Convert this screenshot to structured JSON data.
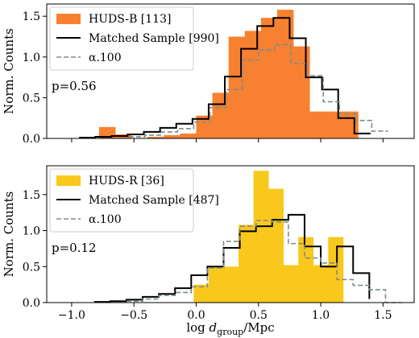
{
  "chart_data": [
    {
      "type": "bar",
      "panel": "top",
      "ylabel": "Norm. Counts",
      "xlabel": "",
      "xlim": [
        -1.2,
        1.75
      ],
      "ylim": [
        0,
        1.65
      ],
      "xticks": [
        -1.0,
        -0.5,
        0.0,
        0.5,
        1.0,
        1.5
      ],
      "xtick_labels": [
        "",
        "",
        "",
        "",
        "",
        ""
      ],
      "yticks": [
        0.0,
        0.5,
        1.0,
        1.5
      ],
      "ytick_labels": [
        "0.0",
        "0.5",
        "1.0",
        "1.5"
      ],
      "annotation": "p=0.56",
      "legend": {
        "placement": "upper-left",
        "entries": [
          {
            "key": "filled",
            "label": "HUDS-B [113]",
            "color": "#f78130"
          },
          {
            "key": "step",
            "label": "Matched Sample [990]",
            "color": "#000000"
          },
          {
            "key": "dashed",
            "label": "α.100",
            "color": "#7f8c8d"
          }
        ]
      },
      "series": [
        {
          "key": "filled",
          "name": "HUDS-B [113]",
          "style": "filled-histogram",
          "color": "#f78130",
          "bin_edges": [
            -0.78,
            -0.65,
            -0.52,
            -0.39,
            -0.26,
            -0.13,
            0.0,
            0.13,
            0.26,
            0.39,
            0.52,
            0.65,
            0.78,
            0.91,
            1.04,
            1.17,
            1.3
          ],
          "values": [
            0.14,
            0.05,
            0.0,
            0.02,
            0.04,
            0.06,
            0.28,
            0.56,
            1.25,
            1.32,
            1.48,
            1.58,
            1.13,
            0.33,
            0.33,
            0.33
          ]
        },
        {
          "key": "step",
          "name": "Matched Sample [990]",
          "style": "step",
          "color": "#000000",
          "bin_edges": [
            -0.94,
            -0.81,
            -0.68,
            -0.55,
            -0.42,
            -0.29,
            -0.16,
            -0.03,
            0.1,
            0.23,
            0.36,
            0.49,
            0.62,
            0.75,
            0.88,
            1.01,
            1.14,
            1.27,
            1.4
          ],
          "values": [
            0.01,
            0.02,
            0.03,
            0.05,
            0.08,
            0.13,
            0.18,
            0.24,
            0.42,
            0.76,
            1.1,
            1.38,
            1.48,
            1.23,
            0.75,
            0.6,
            0.25,
            0.06
          ]
        },
        {
          "key": "dashed",
          "name": "α.100",
          "style": "dashed-step",
          "color": "#7f8c8d",
          "bin_edges": [
            -0.54,
            -0.41,
            -0.28,
            -0.15,
            -0.02,
            0.11,
            0.24,
            0.37,
            0.5,
            0.63,
            0.76,
            0.89,
            1.02,
            1.15,
            1.28,
            1.41,
            1.54
          ],
          "values": [
            0.02,
            0.04,
            0.08,
            0.12,
            0.2,
            0.38,
            0.6,
            0.96,
            1.09,
            1.15,
            0.92,
            0.77,
            0.45,
            0.3,
            0.22,
            0.09
          ]
        }
      ]
    },
    {
      "type": "bar",
      "panel": "bottom",
      "ylabel": "Norm. Counts",
      "xlabel": "log d_group/Mpc",
      "xlabel_parts": {
        "prefix": "log ",
        "var": "d",
        "sub": "group",
        "suffix": "/Mpc"
      },
      "xlim": [
        -1.2,
        1.75
      ],
      "ylim": [
        0,
        1.9
      ],
      "xticks": [
        -1.0,
        -0.5,
        0.0,
        0.5,
        1.0,
        1.5
      ],
      "xtick_labels": [
        "−1.0",
        "−0.5",
        "0.0",
        "0.5",
        "1.0",
        "1.5"
      ],
      "yticks": [
        0.0,
        0.5,
        1.0,
        1.5
      ],
      "ytick_labels": [
        "0.0",
        "0.5",
        "1.0",
        "1.5"
      ],
      "annotation": "p=0.12",
      "legend": {
        "placement": "upper-left",
        "entries": [
          {
            "key": "filled",
            "label": "HUDS-R [36]",
            "color": "#f8c81c"
          },
          {
            "key": "step",
            "label": "Matched Sample [487]",
            "color": "#000000"
          },
          {
            "key": "dashed",
            "label": "α.100",
            "color": "#7f8c8d"
          }
        ]
      },
      "series": [
        {
          "key": "filled",
          "name": "HUDS-R [36]",
          "style": "filled-histogram",
          "color": "#f8c81c",
          "bin_edges": [
            -0.02,
            0.1,
            0.22,
            0.34,
            0.46,
            0.58,
            0.7,
            0.82,
            0.94,
            1.06,
            1.18,
            1.3
          ],
          "values": [
            0.25,
            0.5,
            0.5,
            1.08,
            1.83,
            1.58,
            0.52,
            0.91,
            0.52,
            0.91,
            0.0
          ]
        },
        {
          "key": "step",
          "name": "Matched Sample [487]",
          "style": "step",
          "color": "#000000",
          "bin_edges": [
            -0.82,
            -0.69,
            -0.56,
            -0.43,
            -0.3,
            -0.17,
            -0.04,
            0.09,
            0.22,
            0.35,
            0.48,
            0.61,
            0.74,
            0.87,
            1.0,
            1.13,
            1.26,
            1.39
          ],
          "values": [
            0.01,
            0.02,
            0.04,
            0.08,
            0.12,
            0.2,
            0.38,
            0.5,
            0.76,
            0.99,
            1.06,
            1.15,
            1.22,
            0.78,
            0.5,
            0.78,
            0.41,
            0.05
          ]
        },
        {
          "key": "dashed",
          "name": "α.100",
          "style": "dashed-step",
          "color": "#7f8c8d",
          "bin_edges": [
            -0.56,
            -0.43,
            -0.3,
            -0.17,
            -0.04,
            0.09,
            0.22,
            0.35,
            0.48,
            0.61,
            0.74,
            0.87,
            1.0,
            1.13,
            1.26,
            1.39,
            1.52,
            1.65
          ],
          "values": [
            0.02,
            0.05,
            0.1,
            0.14,
            0.22,
            0.48,
            0.85,
            1.06,
            1.14,
            1.12,
            0.82,
            0.62,
            0.55,
            0.32,
            0.24,
            0.18,
            0.0
          ]
        }
      ]
    }
  ]
}
